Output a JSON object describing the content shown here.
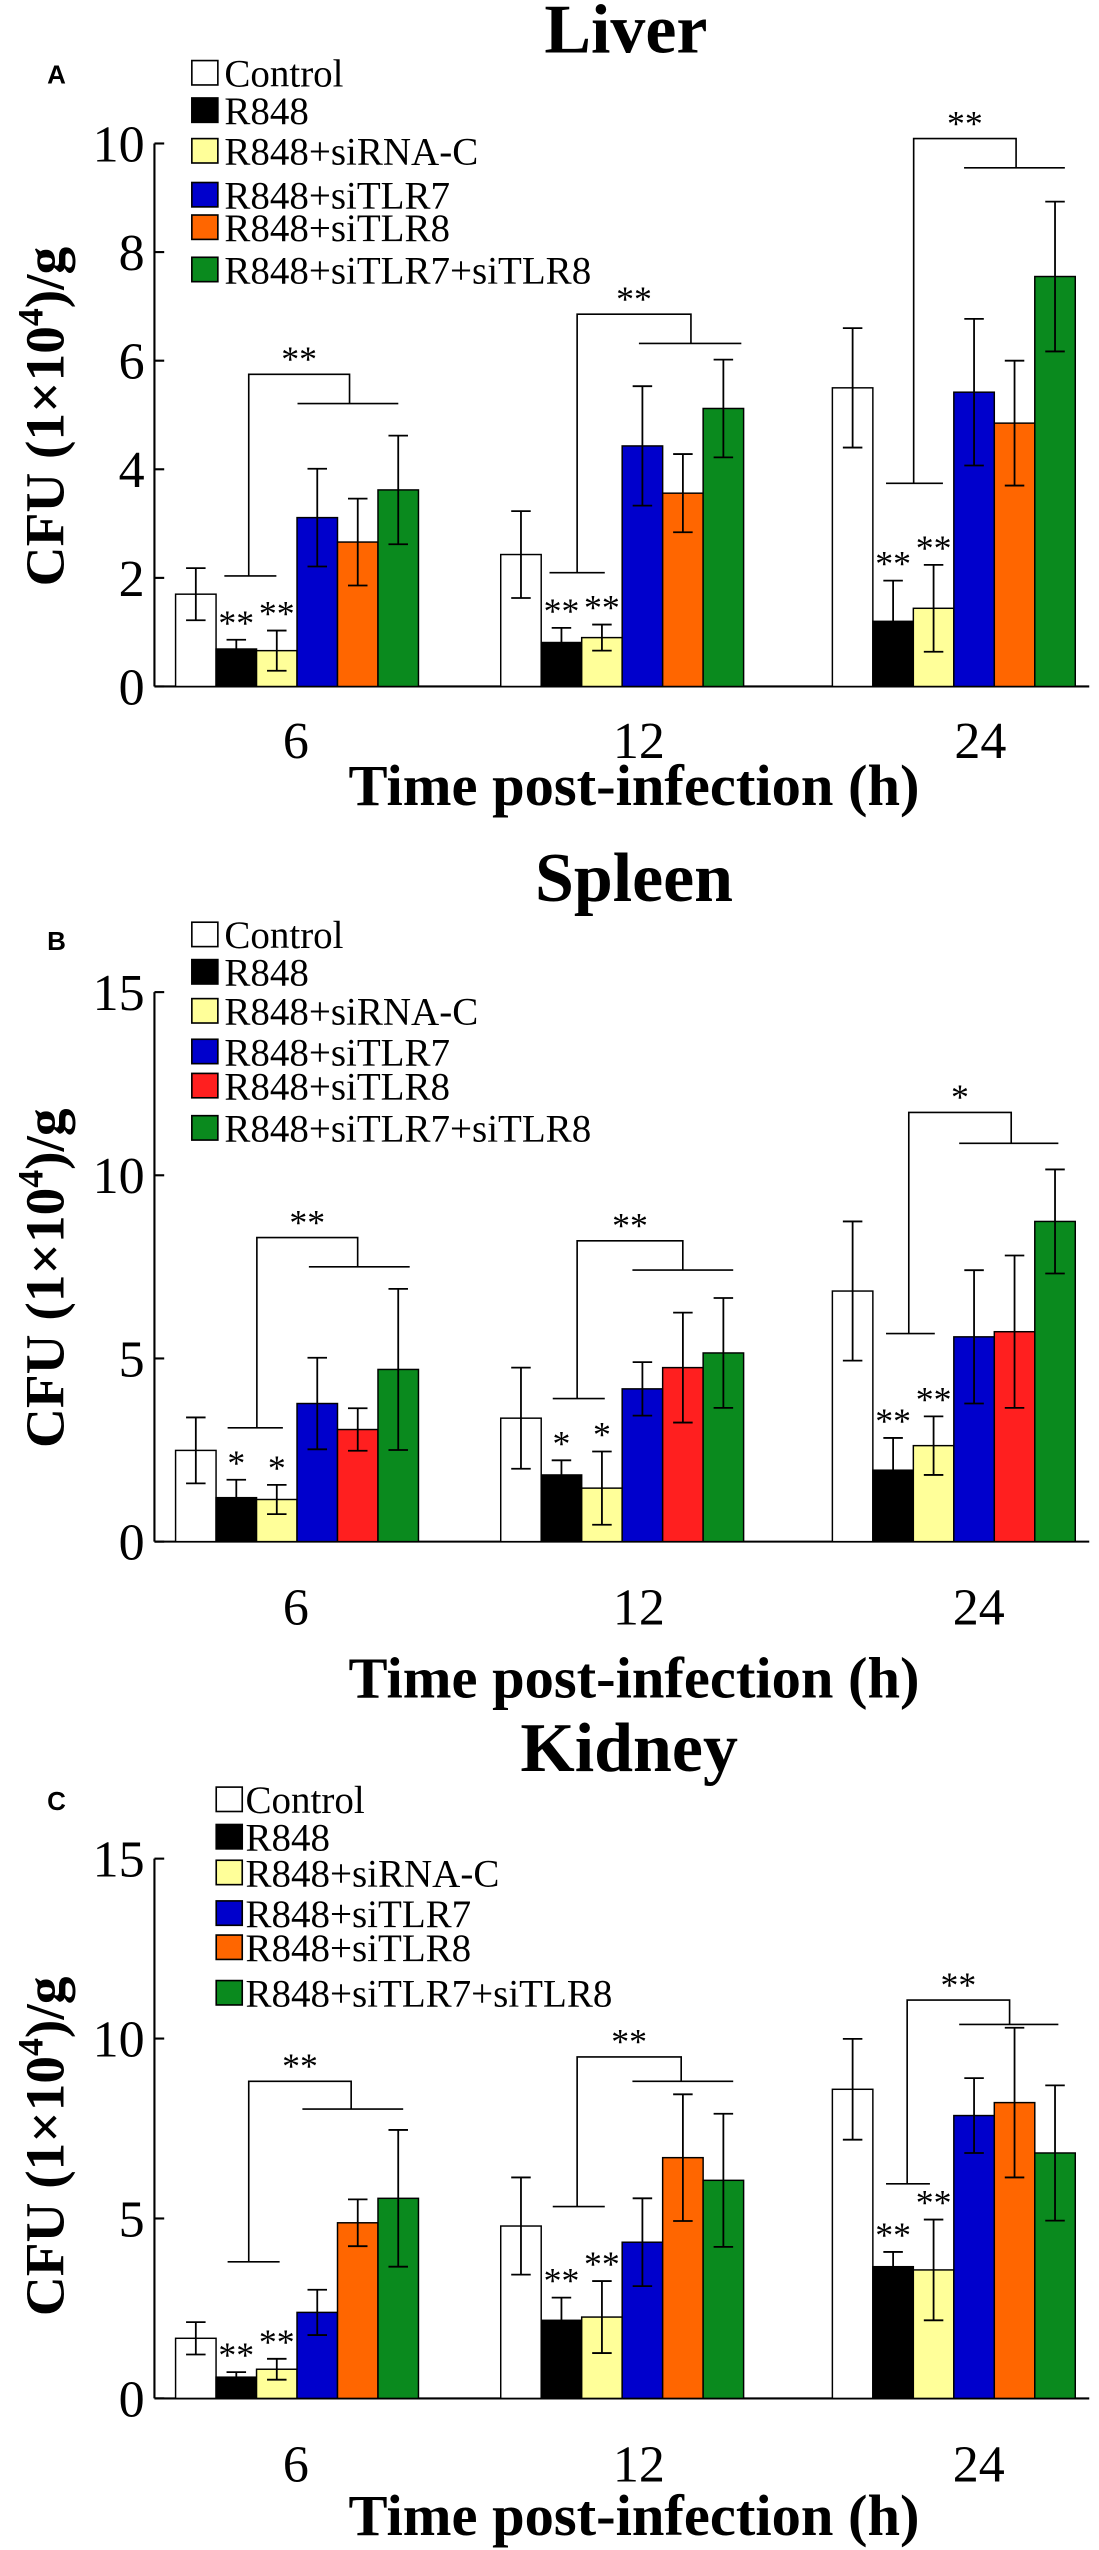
{
  "chart_data": [
    {
      "type": "bar",
      "panel": "A",
      "title": "Liver",
      "xlabel": "Time post-infection (h)",
      "ylabel": {
        "prefix": "CFU (1×10",
        "sup": "4",
        "suffix": ")/g"
      },
      "ylim": [
        0,
        10
      ],
      "yticks": [
        0,
        2,
        4,
        6,
        8,
        10
      ],
      "categories": [
        "6",
        "12",
        "24"
      ],
      "series": [
        {
          "name": "Control",
          "color": "#ffffff",
          "values": [
            1.7,
            2.43,
            5.5
          ],
          "errors": [
            0.48,
            0.8,
            1.1
          ],
          "marks": [
            null,
            null,
            null
          ]
        },
        {
          "name": "R848",
          "color": "#000000",
          "values": [
            0.69,
            0.81,
            1.2
          ],
          "errors": [
            0.17,
            0.27,
            0.75
          ],
          "marks": [
            "**",
            "**",
            "**"
          ]
        },
        {
          "name": "R848+siRNA-C",
          "color": "#ffff99",
          "values": [
            0.66,
            0.9,
            1.44
          ],
          "errors": [
            0.37,
            0.24,
            0.8
          ],
          "marks": [
            "**",
            "**",
            "**"
          ]
        },
        {
          "name": "R848+siTLR7",
          "color": "#0000cc",
          "values": [
            3.11,
            4.43,
            5.42
          ],
          "errors": [
            0.9,
            1.1,
            1.35
          ],
          "marks": [
            null,
            null,
            null
          ]
        },
        {
          "name": "R848+siTLR8",
          "color": "#ff6600",
          "values": [
            2.66,
            3.56,
            4.85
          ],
          "errors": [
            0.8,
            0.72,
            1.15
          ],
          "marks": [
            null,
            null,
            null
          ]
        },
        {
          "name": "R848+siTLR7+siTLR8",
          "color": "#0a8a1e",
          "values": [
            3.62,
            5.12,
            7.55
          ],
          "errors": [
            1.0,
            0.9,
            1.38
          ],
          "marks": [
            null,
            null,
            null
          ]
        }
      ],
      "comparisons": [
        "**",
        "**",
        "**"
      ]
    },
    {
      "type": "bar",
      "panel": "B",
      "title": "Spleen",
      "xlabel": "Time post-infection (h)",
      "ylabel": {
        "prefix": "CFU (1×10",
        "sup": "4",
        "suffix": ")/g"
      },
      "ylim": [
        0,
        15
      ],
      "yticks": [
        0,
        5,
        10,
        15
      ],
      "categories": [
        "6",
        "12",
        "24"
      ],
      "series": [
        {
          "name": "Control",
          "color": "#ffffff",
          "values": [
            2.49,
            3.37,
            6.84
          ],
          "errors": [
            0.9,
            1.38,
            1.9
          ],
          "marks": [
            null,
            null,
            null
          ]
        },
        {
          "name": "R848",
          "color": "#000000",
          "values": [
            1.2,
            1.82,
            1.95
          ],
          "errors": [
            0.49,
            0.4,
            0.88
          ],
          "marks": [
            "*",
            "*",
            "**"
          ]
        },
        {
          "name": "R848+siRNA-C",
          "color": "#ffff99",
          "values": [
            1.15,
            1.46,
            2.62
          ],
          "errors": [
            0.4,
            1.0,
            0.8
          ],
          "marks": [
            "*",
            "*",
            "**"
          ]
        },
        {
          "name": "R848+siTLR7",
          "color": "#0000cc",
          "values": [
            3.77,
            4.17,
            5.59
          ],
          "errors": [
            1.25,
            0.73,
            1.82
          ],
          "marks": [
            null,
            null,
            null
          ]
        },
        {
          "name": "R848+siTLR8",
          "color": "#ff1f1f",
          "values": [
            3.06,
            4.75,
            5.73
          ],
          "errors": [
            0.58,
            1.5,
            2.08
          ],
          "marks": [
            null,
            null,
            null
          ]
        },
        {
          "name": "R848+siTLR7+siTLR8",
          "color": "#0a8a1e",
          "values": [
            4.7,
            5.15,
            8.74
          ],
          "errors": [
            2.2,
            1.5,
            1.42
          ],
          "marks": [
            null,
            null,
            null
          ]
        }
      ],
      "comparisons": [
        "**",
        "**",
        "*"
      ]
    },
    {
      "type": "bar",
      "panel": "C",
      "title": "Kidney",
      "xlabel": "Time post-infection (h)",
      "ylabel": {
        "prefix": "CFU (1×10",
        "sup": "4",
        "suffix": ")/g"
      },
      "ylim": [
        0,
        15
      ],
      "yticks": [
        0,
        5,
        10,
        15
      ],
      "categories": [
        "6",
        "12",
        "24"
      ],
      "series": [
        {
          "name": "Control",
          "color": "#ffffff",
          "values": [
            1.67,
            4.79,
            8.59
          ],
          "errors": [
            0.45,
            1.35,
            1.4
          ],
          "marks": [
            null,
            null,
            null
          ]
        },
        {
          "name": "R848",
          "color": "#000000",
          "values": [
            0.59,
            2.17,
            3.66
          ],
          "errors": [
            0.14,
            0.63,
            0.41
          ],
          "marks": [
            "**",
            "**",
            "**"
          ]
        },
        {
          "name": "R848+siRNA-C",
          "color": "#ffff99",
          "values": [
            0.81,
            2.26,
            3.57
          ],
          "errors": [
            0.29,
            1.0,
            1.4
          ],
          "marks": [
            "**",
            "**",
            "**"
          ]
        },
        {
          "name": "R848+siTLR7",
          "color": "#0000cc",
          "values": [
            2.39,
            4.34,
            7.86
          ],
          "errors": [
            0.63,
            1.22,
            1.04
          ],
          "marks": [
            null,
            null,
            null
          ]
        },
        {
          "name": "R848+siTLR8",
          "color": "#ff6600",
          "values": [
            4.88,
            6.69,
            8.22
          ],
          "errors": [
            0.65,
            1.76,
            2.08
          ],
          "marks": [
            null,
            null,
            null
          ]
        },
        {
          "name": "R848+siTLR7+siTLR8",
          "color": "#0a8a1e",
          "values": [
            5.56,
            6.06,
            6.82
          ],
          "errors": [
            1.9,
            1.85,
            1.88
          ],
          "marks": [
            null,
            null,
            null
          ]
        }
      ],
      "comparisons": [
        "**",
        "**",
        "**"
      ]
    }
  ]
}
